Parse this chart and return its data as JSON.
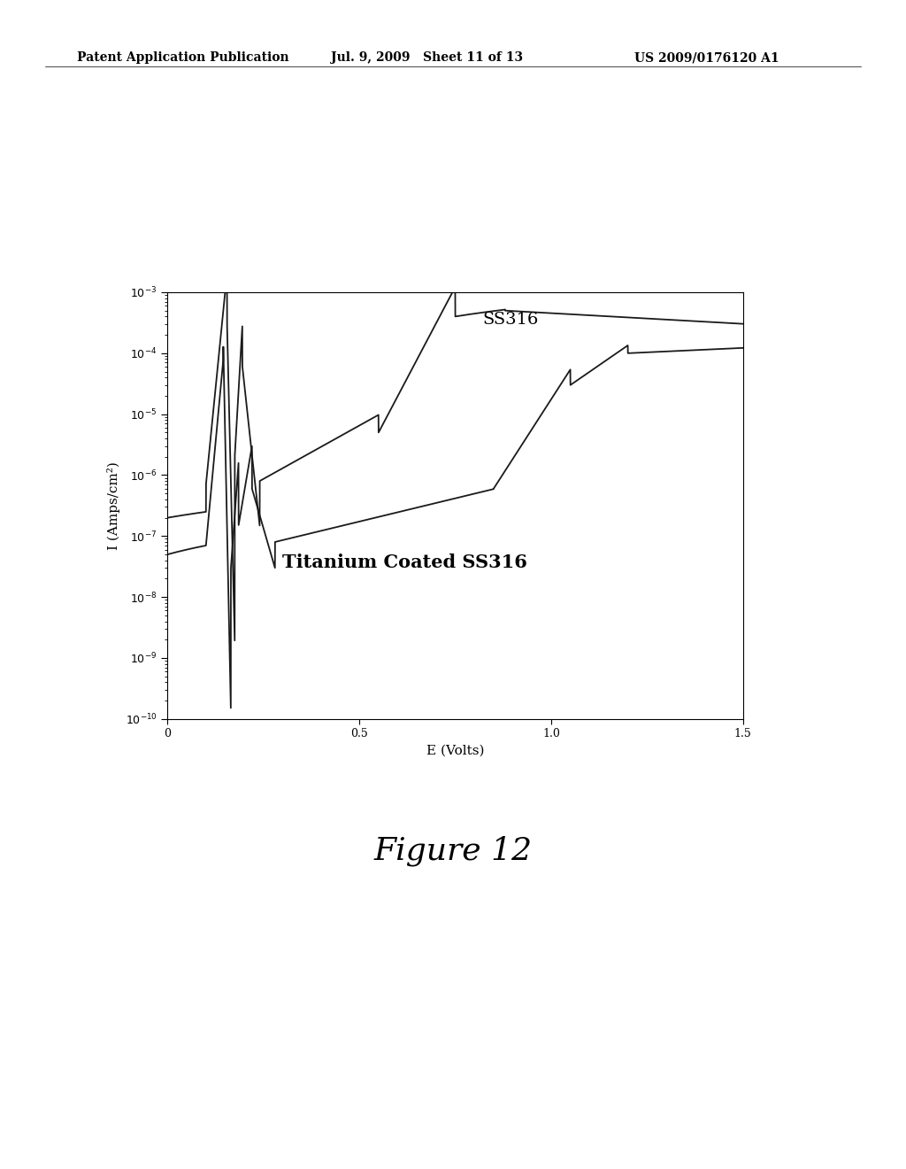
{
  "header_left": "Patent Application Publication",
  "header_center": "Jul. 9, 2009   Sheet 11 of 13",
  "header_right": "US 2009/0176120 A1",
  "figure_label": "Figure 12",
  "xlabel": "E (Volts)",
  "ylabel": "I (Amps/cm²)",
  "xlim": [
    0,
    1.5
  ],
  "ylim_log": [
    -10,
    -3
  ],
  "x_ticks": [
    0,
    0.5,
    1.0,
    1.5
  ],
  "x_tick_labels": [
    "0",
    "0.5",
    "1.0",
    "1.5"
  ],
  "label_ss316": "SS316",
  "label_ti": "Titanium Coated SS316",
  "bg_color": "#ffffff",
  "line_color": "#1a1a1a",
  "header_font_size": 10,
  "figure_label_font_size": 26,
  "axis_label_font_size": 11,
  "tick_font_size": 9,
  "annotation_ss316_font_size": 14,
  "annotation_ti_font_size": 15
}
